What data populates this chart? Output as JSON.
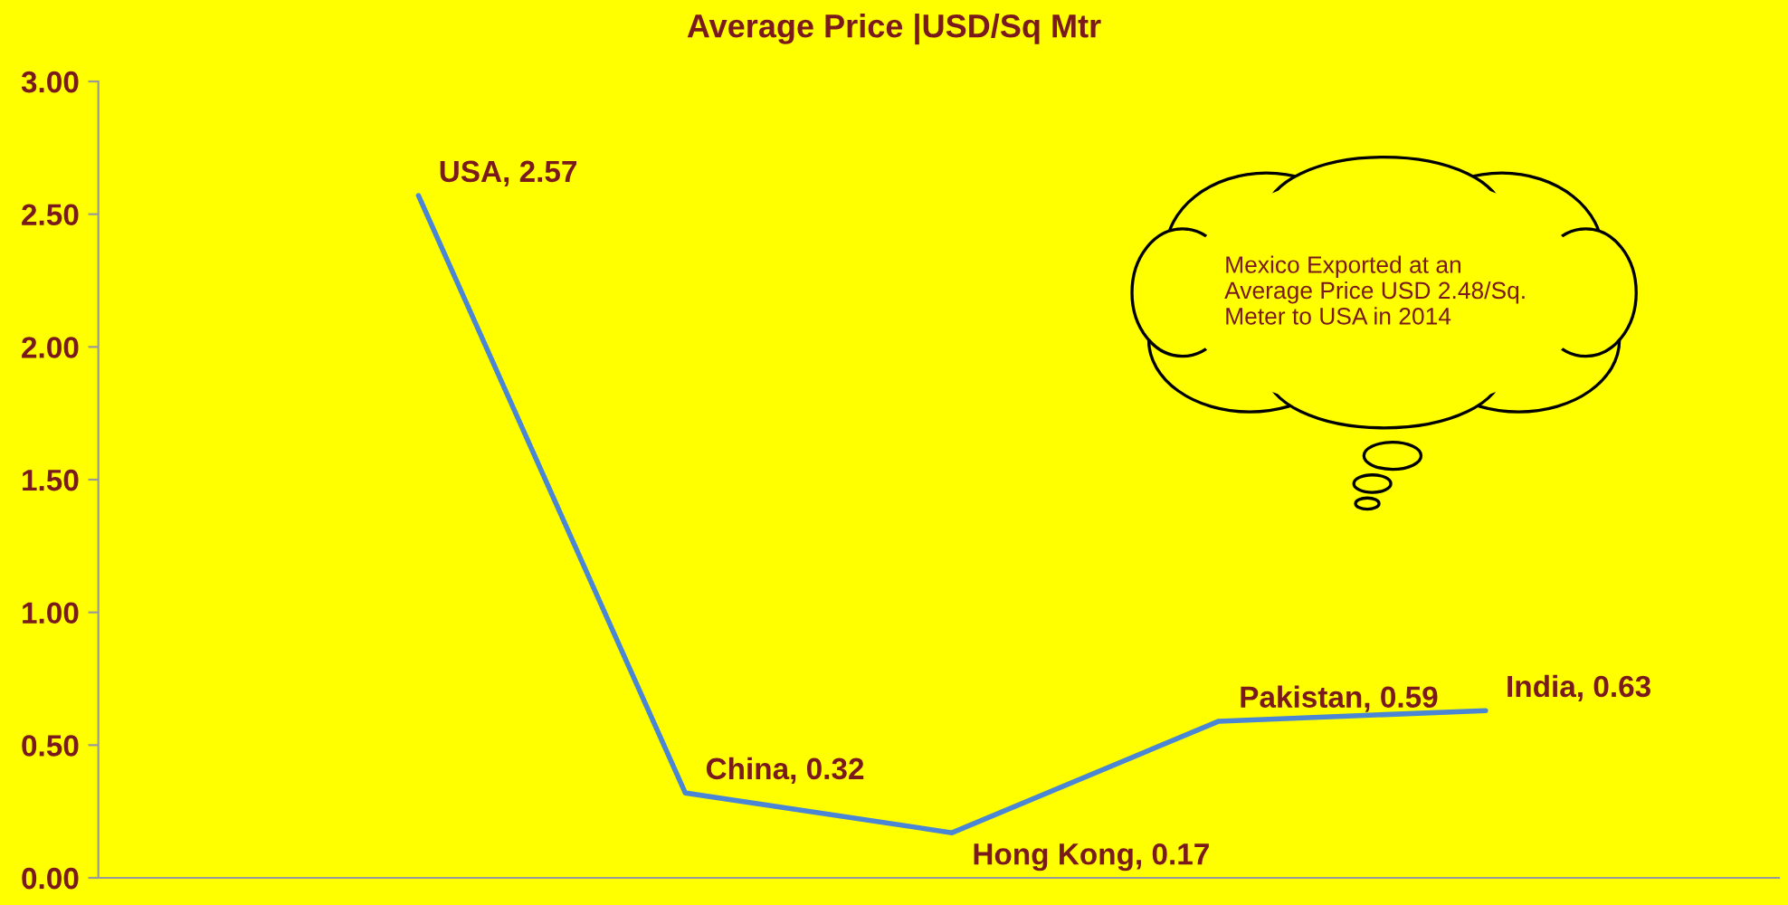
{
  "chart_data": {
    "type": "line",
    "title": "Average Price |USD/Sq Mtr",
    "categories": [
      null,
      null,
      null,
      null,
      null
    ],
    "series": [
      {
        "color": "#4a86d4",
        "values": [
          2.57,
          0.32,
          0.17,
          0.59,
          0.63
        ]
      }
    ],
    "value_labels": [
      "USA, 2.57",
      "China, 0.32",
      "Hong Kong, 0.17",
      "Pakistan, 0.59",
      "India, 0.63"
    ],
    "ylim": [
      0,
      3
    ],
    "yticks": [
      {
        "value": 0,
        "label": "0.00"
      },
      {
        "value": 0.5,
        "label": "0.50"
      },
      {
        "value": 1,
        "label": "1.00"
      },
      {
        "value": 1.5,
        "label": "1.50"
      },
      {
        "value": 2,
        "label": "2.00"
      },
      {
        "value": 2.5,
        "label": "2.50"
      },
      {
        "value": 3,
        "label": "3.00"
      }
    ],
    "tick_labels": "y",
    "grid": false,
    "marker": "none",
    "line_style": "solid",
    "annotations": [
      "Mexico Exported at an Average Price USD 2.48/Sq. Meter to USA in 2014"
    ]
  }
}
